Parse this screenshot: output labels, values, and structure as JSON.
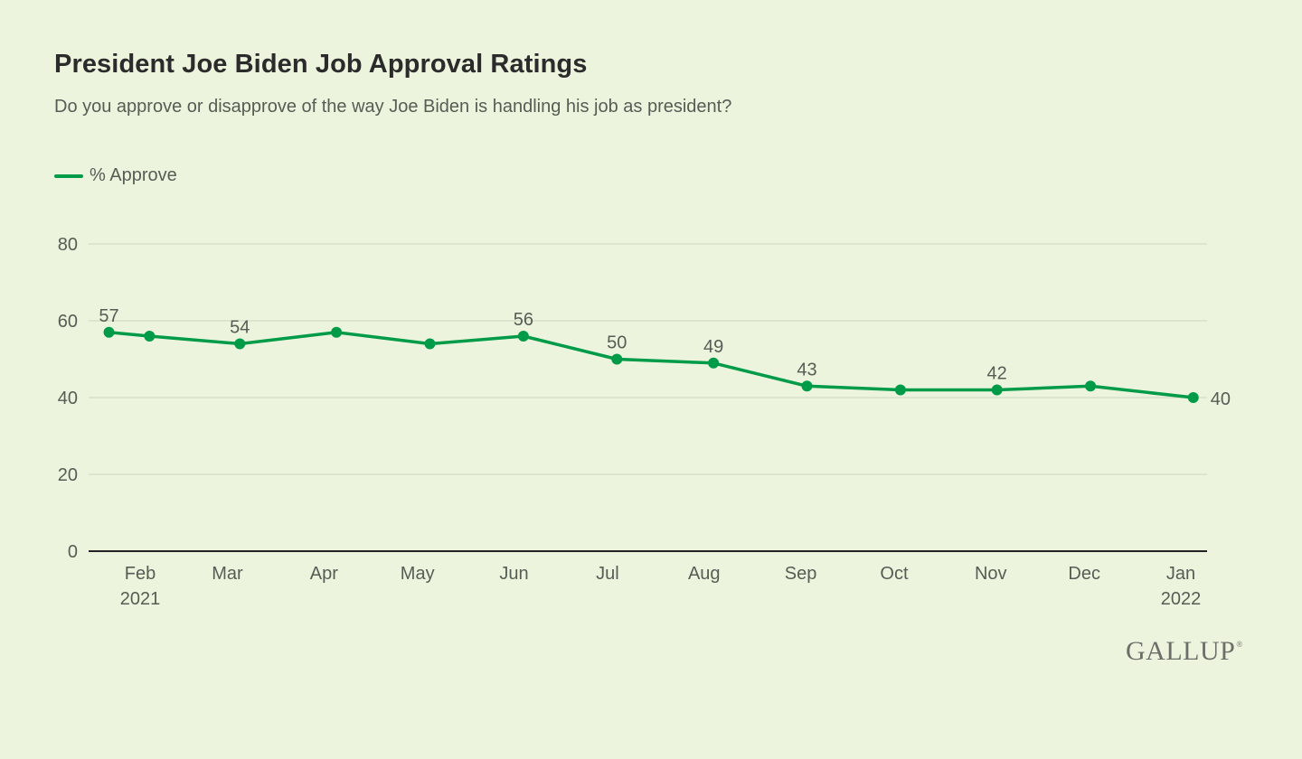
{
  "header": {
    "title": "President Joe Biden Job Approval Ratings",
    "subtitle": "Do you approve or disapprove of the way Joe Biden is handling his job as president?"
  },
  "legend": {
    "label": "% Approve"
  },
  "brand": {
    "logo_text": "GALLUP",
    "trademark": "®"
  },
  "colors": {
    "line": "#009b48",
    "grid": "#d3dcc6",
    "axis": "#222222",
    "label": "#555d55",
    "background": "#edf4de"
  },
  "chart_data": {
    "type": "line",
    "title": "President Joe Biden Job Approval Ratings",
    "subtitle": "Do you approve or disapprove of the way Joe Biden is handling his job as president?",
    "xlabel": "",
    "ylabel": "",
    "ylim": [
      0,
      80
    ],
    "yticks": [
      0,
      20,
      40,
      60,
      80
    ],
    "grid": true,
    "legend_position": "top-left",
    "x_ticks": [
      {
        "date": "2021-02-01",
        "label": "Feb",
        "sublabel": "2021"
      },
      {
        "date": "2021-03-01",
        "label": "Mar",
        "sublabel": ""
      },
      {
        "date": "2021-04-01",
        "label": "Apr",
        "sublabel": ""
      },
      {
        "date": "2021-05-01",
        "label": "May",
        "sublabel": ""
      },
      {
        "date": "2021-06-01",
        "label": "Jun",
        "sublabel": ""
      },
      {
        "date": "2021-07-01",
        "label": "Jul",
        "sublabel": ""
      },
      {
        "date": "2021-08-01",
        "label": "Aug",
        "sublabel": ""
      },
      {
        "date": "2021-09-01",
        "label": "Sep",
        "sublabel": ""
      },
      {
        "date": "2021-10-01",
        "label": "Oct",
        "sublabel": ""
      },
      {
        "date": "2021-11-01",
        "label": "Nov",
        "sublabel": ""
      },
      {
        "date": "2021-12-01",
        "label": "Dec",
        "sublabel": ""
      },
      {
        "date": "2022-01-01",
        "label": "Jan",
        "sublabel": "2022"
      }
    ],
    "series": [
      {
        "name": "% Approve",
        "points": [
          {
            "x": "2021-01-22",
            "y": 57,
            "label": "57"
          },
          {
            "x": "2021-02-04",
            "y": 56,
            "label": ""
          },
          {
            "x": "2021-03-05",
            "y": 54,
            "label": "54"
          },
          {
            "x": "2021-04-05",
            "y": 57,
            "label": ""
          },
          {
            "x": "2021-05-05",
            "y": 54,
            "label": ""
          },
          {
            "x": "2021-06-04",
            "y": 56,
            "label": "56"
          },
          {
            "x": "2021-07-04",
            "y": 50,
            "label": "50"
          },
          {
            "x": "2021-08-04",
            "y": 49,
            "label": "49"
          },
          {
            "x": "2021-09-03",
            "y": 43,
            "label": "43"
          },
          {
            "x": "2021-10-03",
            "y": 42,
            "label": ""
          },
          {
            "x": "2021-11-03",
            "y": 42,
            "label": "42"
          },
          {
            "x": "2021-12-03",
            "y": 43,
            "label": ""
          },
          {
            "x": "2022-01-05",
            "y": 40,
            "label": "40"
          }
        ]
      }
    ]
  }
}
